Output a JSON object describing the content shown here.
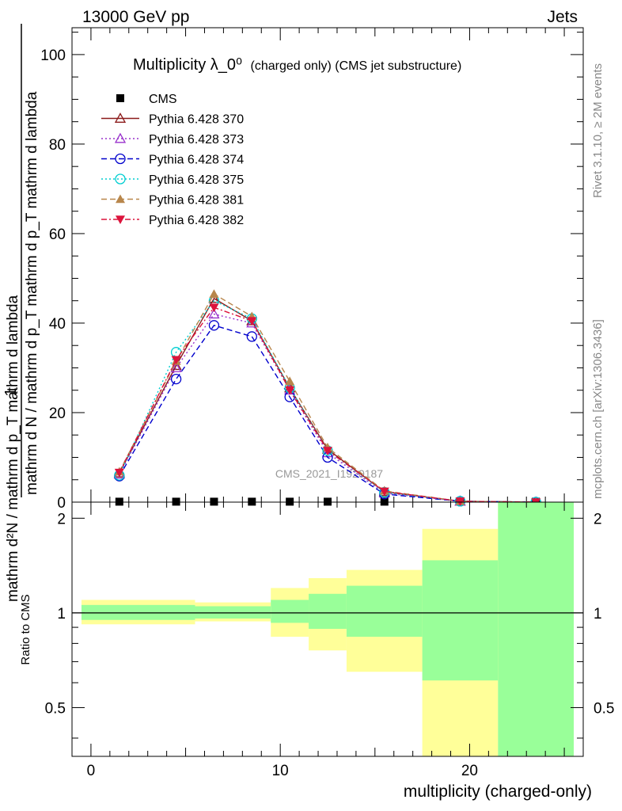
{
  "header": {
    "energy": "13000 GeV pp",
    "process": "Jets"
  },
  "side": {
    "rivet": "Rivet 3.1.10, ≥ 2M events",
    "mcplots": "mcplots.cern.ch [arXiv:1306.3436]"
  },
  "chart_data": [
    {
      "type": "line",
      "title": "Multiplicity λ_0⁰",
      "title_suffix": "(charged only) (CMS jet substructure)",
      "watermark": "CMS_2021_I1920187",
      "ylabel_numerator": "1",
      "ylabel_denominator": "mathrm d N / mathrm d p_T mathrm d p_T mathrm d lambda",
      "ylabel_top": "mathrm d²N",
      "ylabel_top_full": "mathrm d²N / mathrm d p_T mathrm d lambda",
      "xlim": [
        -1,
        26
      ],
      "ylim": [
        0,
        106
      ],
      "yticks": [
        0,
        20,
        40,
        60,
        80,
        100
      ],
      "tick_labels": [
        "0",
        "20",
        "40",
        "60",
        "80",
        "100"
      ],
      "legend_position": "top-left",
      "x": [
        1.5,
        4.5,
        6.5,
        8.5,
        10.5,
        12.5,
        15.5,
        19.5,
        23.5
      ],
      "series": [
        {
          "name": "CMS",
          "color": "#000000",
          "marker": "square",
          "dash": "none",
          "values": [
            0.1,
            0.1,
            0.1,
            0.1,
            0.1,
            0.1,
            0.1,
            0.1,
            0.1
          ]
        },
        {
          "name": "Pythia 6.428 370",
          "color": "#8b1a1a",
          "marker": "triangle-open",
          "dash": "solid",
          "values": [
            6.5,
            30.5,
            45.5,
            40.5,
            25.5,
            11.8,
            2.3,
            0.2,
            0.0
          ]
        },
        {
          "name": "Pythia 6.428 373",
          "color": "#9932cc",
          "marker": "triangle-open",
          "dash": "dotted",
          "values": [
            6.2,
            30.0,
            42.0,
            40.0,
            25.0,
            11.0,
            2.0,
            0.2,
            0.0
          ]
        },
        {
          "name": "Pythia 6.428 374",
          "color": "#0000cd",
          "marker": "circle-open",
          "dash": "dashed",
          "values": [
            5.8,
            27.5,
            39.5,
            37.0,
            23.5,
            10.0,
            1.8,
            0.2,
            0.0
          ]
        },
        {
          "name": "Pythia 6.428 375",
          "color": "#00ced1",
          "marker": "circle-open",
          "dash": "dotted",
          "values": [
            6.0,
            33.5,
            45.0,
            41.0,
            25.5,
            11.5,
            2.2,
            0.2,
            0.0
          ]
        },
        {
          "name": "Pythia 6.428 381",
          "color": "#b8864b",
          "marker": "triangle-filled",
          "dash": "dashed",
          "values": [
            6.8,
            31.5,
            46.5,
            41.5,
            27.0,
            12.2,
            2.5,
            0.2,
            0.0
          ]
        },
        {
          "name": "Pythia 6.428 382",
          "color": "#dc143c",
          "marker": "triangle-down-filled",
          "dash": "dashdot",
          "values": [
            6.6,
            31.8,
            43.5,
            40.5,
            25.0,
            11.5,
            2.4,
            0.2,
            0.0
          ]
        }
      ]
    },
    {
      "type": "area",
      "ylabel": "Ratio to CMS",
      "xlabel": "multiplicity (charged-only)",
      "xlim": [
        -1,
        26
      ],
      "ylim": [
        0.35,
        2.25
      ],
      "xticks": [
        0,
        10,
        20
      ],
      "x_tick_labels": [
        "0",
        "10",
        "20"
      ],
      "yticks": [
        0.5,
        1,
        2
      ],
      "y_tick_labels": [
        "0.5",
        "1",
        "2"
      ],
      "reference_line": 1,
      "band_colors": {
        "inner": "#99ff99",
        "outer": "#ffff99"
      },
      "bins": [
        {
          "lo": -0.5,
          "hi": 5.5,
          "inner": [
            0.95,
            1.06
          ],
          "outer": [
            0.92,
            1.1
          ]
        },
        {
          "lo": 5.5,
          "hi": 9.5,
          "inner": [
            0.96,
            1.05
          ],
          "outer": [
            0.94,
            1.08
          ]
        },
        {
          "lo": 9.5,
          "hi": 11.5,
          "inner": [
            0.93,
            1.1
          ],
          "outer": [
            0.84,
            1.2
          ]
        },
        {
          "lo": 11.5,
          "hi": 13.5,
          "inner": [
            0.89,
            1.15
          ],
          "outer": [
            0.76,
            1.29
          ]
        },
        {
          "lo": 13.5,
          "hi": 17.5,
          "inner": [
            0.84,
            1.22
          ],
          "outer": [
            0.65,
            1.37
          ]
        },
        {
          "lo": 17.5,
          "hi": 21.5,
          "inner": [
            0.61,
            1.47
          ],
          "outer": [
            0.35,
            1.85
          ]
        },
        {
          "lo": 21.5,
          "hi": 25.5,
          "inner": [
            0.35,
            2.25
          ],
          "outer": [
            0.35,
            2.25
          ]
        }
      ]
    }
  ]
}
